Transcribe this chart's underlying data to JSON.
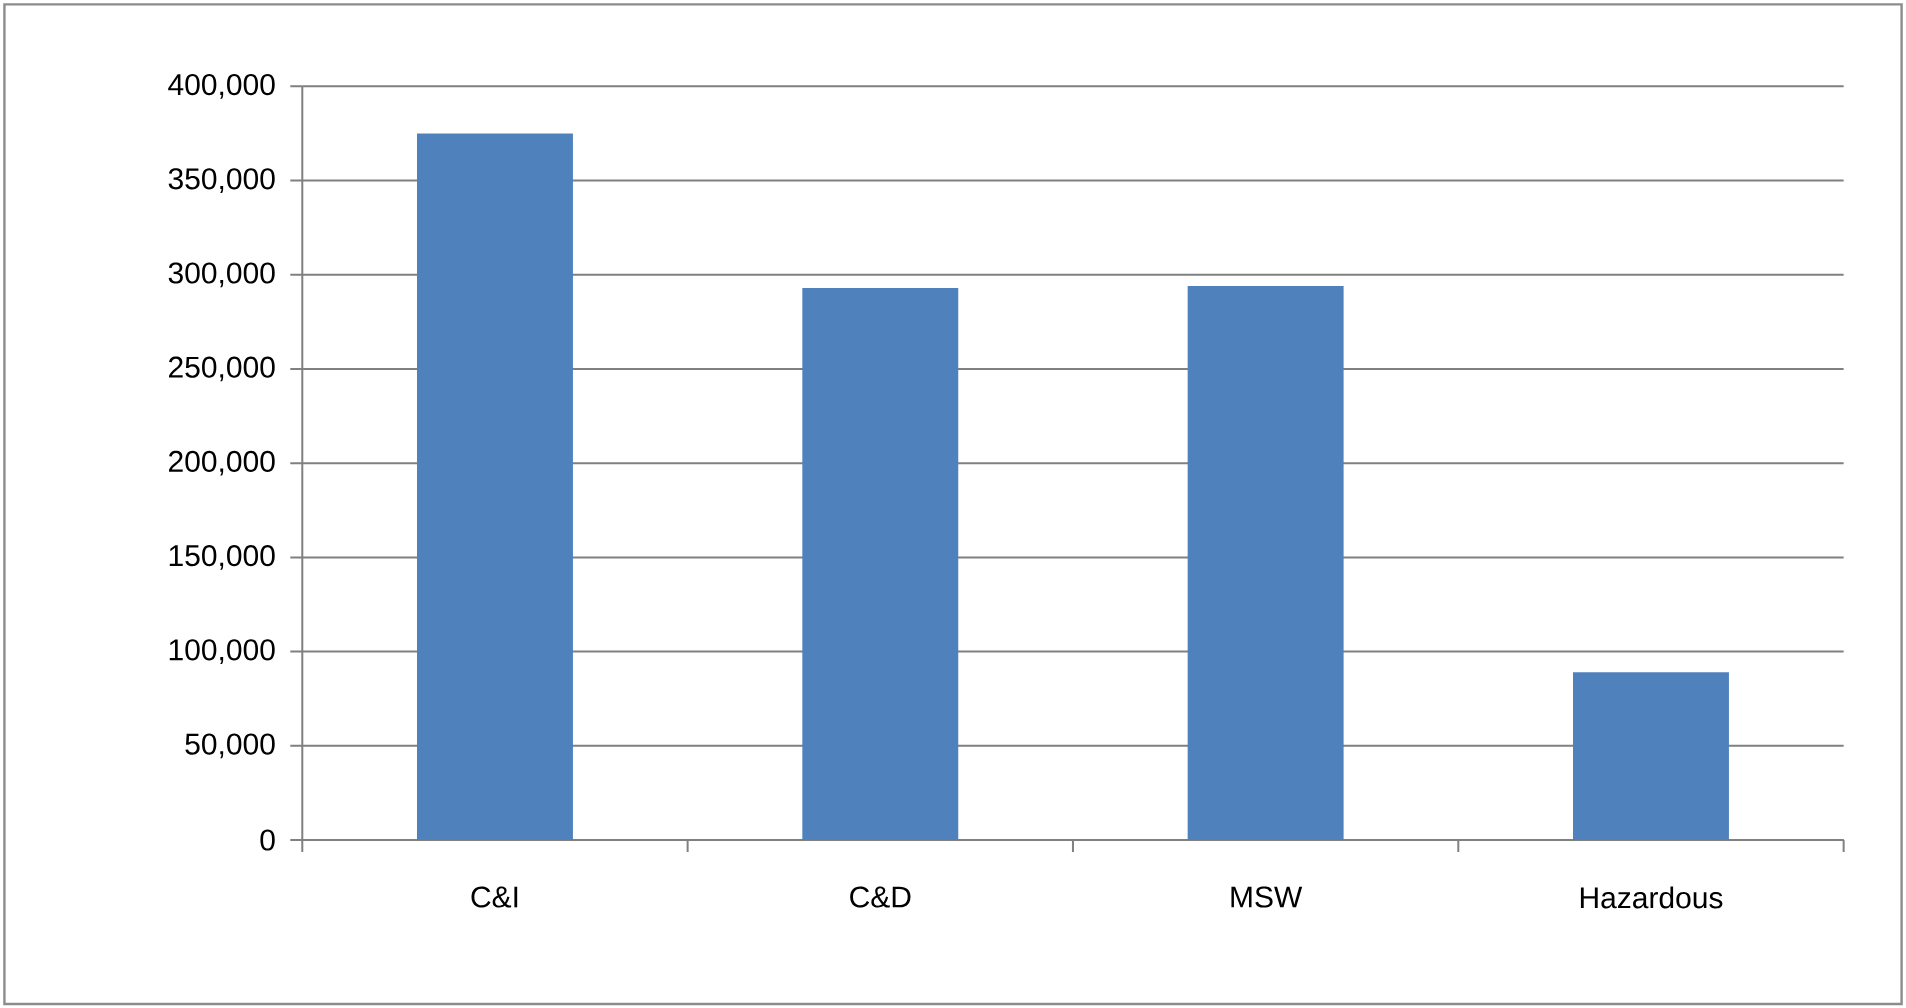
{
  "chart_data": {
    "type": "bar",
    "categories": [
      "C&I",
      "C&D",
      "MSW",
      "Hazardous"
    ],
    "values": [
      375000,
      293000,
      294000,
      89000
    ],
    "color": "#4f81bd",
    "ylim": [
      0,
      400000
    ],
    "yticks": [
      {
        "value": 0,
        "label": "0"
      },
      {
        "value": 50000,
        "label": "50,000"
      },
      {
        "value": 100000,
        "label": "100,000"
      },
      {
        "value": 150000,
        "label": "150,000"
      },
      {
        "value": 200000,
        "label": "200,000"
      },
      {
        "value": 250000,
        "label": "250,000"
      },
      {
        "value": 300000,
        "label": "300,000"
      },
      {
        "value": 350000,
        "label": "350,000"
      },
      {
        "value": 400000,
        "label": "400,000"
      }
    ],
    "grid": "y"
  }
}
